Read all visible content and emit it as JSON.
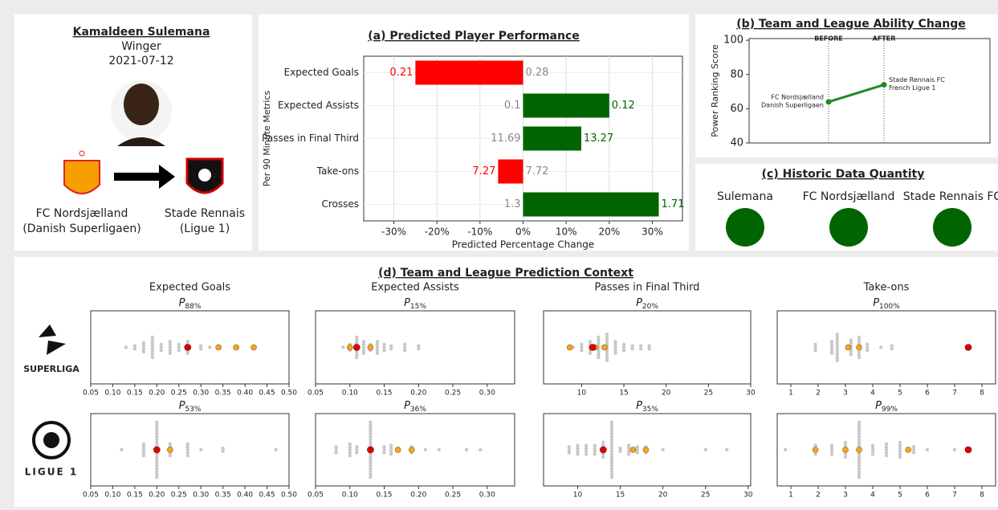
{
  "player": {
    "name": "Kamaldeen Sulemana",
    "position": "Winger",
    "date": "2021-07-12",
    "from_club": [
      "FC Nordsjælland",
      "(Danish Superligaen)"
    ],
    "to_club": [
      "Stade Rennais",
      "(Ligue 1)"
    ]
  },
  "chart_data": [
    {
      "type": "hbar",
      "title": "(a) Predicted Player Performance",
      "xlabel": "Predicted Percentage Change",
      "ylabel": "Per 90 Minute Metrics",
      "categories": [
        "Expected Goals",
        "Expected Assists",
        "Passes in Final Third",
        "Take-ons",
        "Crosses"
      ],
      "values": [
        -25,
        20,
        13.5,
        -5.8,
        31.5
      ],
      "baseline": [
        0.28,
        0.1,
        11.69,
        7.72,
        1.3
      ],
      "predicted": [
        0.21,
        0.12,
        13.27,
        7.27,
        1.71
      ],
      "color_increase": "#006400",
      "color_decrease": "#ff0000",
      "baseline_color": "#888888",
      "xlim": [
        -37,
        37
      ],
      "xticks": [
        {
          "value": -30,
          "label": "-30%"
        },
        {
          "value": -20,
          "label": "-20%"
        },
        {
          "value": -10,
          "label": "-10%"
        },
        {
          "value": 0,
          "label": "0%"
        },
        {
          "value": 10,
          "label": "10%"
        },
        {
          "value": 20,
          "label": "20%"
        },
        {
          "value": 30,
          "label": "30%"
        }
      ],
      "grid": true
    },
    {
      "type": "line",
      "title": "(b) Team and League Ability Change",
      "ylabel": "Power Ranking Score",
      "categories": [
        "BEFORE",
        "AFTER"
      ],
      "values": [
        64,
        74
      ],
      "color": "#228b22",
      "annotations": [
        [
          "FC Nordsjælland",
          "Danish Superligaen"
        ],
        [
          "Stade Rennais FC",
          "French Ligue 1"
        ]
      ],
      "ylim": [
        40,
        101
      ],
      "yticks": [
        40,
        60,
        80,
        100
      ]
    },
    {
      "type": "circles",
      "title": "(c) Historic Data Quantity",
      "categories": [
        "Sulemana",
        "FC Nordsjælland",
        "Stade Rennais FC"
      ],
      "color": "#006400"
    },
    {
      "type": "strip-grid",
      "title": "(d) Team and League Prediction Context",
      "row_labels": [
        "SUPERLIGA",
        "LIGUE 1"
      ],
      "point_color": "#c8c8c8",
      "highlight_color": "#f5a623",
      "player_color": "#e00000",
      "panels": [
        {
          "title": "Expected Goals",
          "subtitle": "P",
          "subtitle_sub": "88%",
          "xlim": [
            0.05,
            0.5
          ],
          "xticks": [
            0.05,
            {
              "value": 0.1,
              "label": "0.10"
            },
            0.15,
            {
              "value": 0.2,
              "label": "0.20"
            },
            0.25,
            {
              "value": 0.3,
              "label": "0.30"
            },
            0.35,
            {
              "value": 0.4,
              "label": "0.40"
            },
            0.45,
            {
              "value": 0.5,
              "label": "0.50"
            }
          ],
          "points": {
            "values": [
              0.13,
              0.15,
              0.17,
              0.19,
              0.21,
              0.23,
              0.25,
              0.27,
              0.3,
              0.32
            ],
            "counts": [
              1,
              2,
              4,
              8,
              3,
              5,
              3,
              5,
              2,
              1
            ]
          },
          "highlights": [
            0.34,
            0.38,
            0.42
          ],
          "player": 0.27
        },
        {
          "title": "Expected Assists",
          "subtitle": "P",
          "subtitle_sub": "15%",
          "xlim": [
            0.05,
            0.34
          ],
          "xticks": [
            0.05,
            {
              "value": 0.1,
              "label": "0.10"
            },
            0.15,
            {
              "value": 0.2,
              "label": "0.20"
            },
            0.25,
            {
              "value": 0.3,
              "label": "0.30"
            }
          ],
          "points": {
            "values": [
              0.09,
              0.1,
              0.11,
              0.12,
              0.13,
              0.14,
              0.15,
              0.16,
              0.18,
              0.2
            ],
            "counts": [
              1,
              3,
              8,
              5,
              3,
              5,
              3,
              2,
              3,
              2
            ]
          },
          "highlights": [
            0.1,
            0.11,
            0.13
          ],
          "player": 0.11
        },
        {
          "title": "Passes in Final Third",
          "subtitle": "P",
          "subtitle_sub": "20%",
          "xlim": [
            5.5,
            30
          ],
          "xticks": [
            10,
            15,
            20,
            25,
            30
          ],
          "points": {
            "values": [
              9,
              10,
              11,
              12,
              13,
              14,
              15,
              16,
              17,
              18
            ],
            "counts": [
              1,
              3,
              5,
              8,
              10,
              5,
              3,
              2,
              2,
              2
            ]
          },
          "highlights": [
            8.6,
            11.6,
            12.7
          ],
          "player": 11.3
        },
        {
          "title": "Take-ons",
          "subtitle": "P",
          "subtitle_sub": "100%",
          "xlim": [
            0.5,
            8.5
          ],
          "xticks": [
            1,
            2,
            3,
            4,
            5,
            6,
            7,
            8
          ],
          "points": {
            "values": [
              1.9,
              2.5,
              2.7,
              3.2,
              3.5,
              3.8,
              4.3,
              4.7
            ],
            "counts": [
              3,
              5,
              10,
              6,
              8,
              3,
              1,
              2
            ]
          },
          "highlights": [
            3.1,
            3.5
          ],
          "player": 7.5
        },
        {
          "subtitle": "P",
          "subtitle_sub": "53%",
          "xlim": [
            0.05,
            0.5
          ],
          "xticks": [
            0.05,
            {
              "value": 0.1,
              "label": "0.10"
            },
            0.15,
            {
              "value": 0.2,
              "label": "0.20"
            },
            0.25,
            {
              "value": 0.3,
              "label": "0.30"
            },
            0.35,
            {
              "value": 0.4,
              "label": "0.40"
            },
            0.45,
            {
              "value": 0.5,
              "label": "0.50"
            }
          ],
          "points": {
            "values": [
              0.12,
              0.17,
              0.2,
              0.23,
              0.27,
              0.3,
              0.35,
              0.47
            ],
            "counts": [
              1,
              5,
              20,
              5,
              5,
              1,
              2,
              1
            ]
          },
          "highlights": [
            0.2,
            0.23
          ],
          "player": 0.2
        },
        {
          "subtitle": "P",
          "subtitle_sub": "36%",
          "xlim": [
            0.05,
            0.34
          ],
          "xticks": [
            0.05,
            {
              "value": 0.1,
              "label": "0.10"
            },
            0.15,
            {
              "value": 0.2,
              "label": "0.20"
            },
            0.25,
            {
              "value": 0.3,
              "label": "0.30"
            }
          ],
          "points": {
            "values": [
              0.08,
              0.1,
              0.11,
              0.13,
              0.15,
              0.16,
              0.17,
              0.19,
              0.21,
              0.23,
              0.27,
              0.29
            ],
            "counts": [
              3,
              5,
              3,
              20,
              3,
              4,
              2,
              3,
              1,
              1,
              1,
              1
            ]
          },
          "highlights": [
            0.13,
            0.17,
            0.19
          ],
          "player": 0.13
        },
        {
          "subtitle": "P",
          "subtitle_sub": "35%",
          "xlim": [
            6,
            30.3
          ],
          "xticks": [
            10,
            15,
            20,
            25,
            30
          ],
          "points": {
            "values": [
              9,
              10,
              11,
              12,
              13,
              14,
              15,
              16,
              17,
              18,
              20,
              25,
              27.5
            ],
            "counts": [
              3,
              4,
              4,
              4,
              6,
              20,
              2,
              4,
              3,
              3,
              1,
              1,
              1
            ]
          },
          "highlights": [
            13,
            16.5,
            18
          ],
          "player": 13
        },
        {
          "subtitle": "P",
          "subtitle_sub": "99%",
          "xlim": [
            0.5,
            8.5
          ],
          "xticks": [
            1,
            2,
            3,
            4,
            5,
            6,
            7,
            8
          ],
          "points": {
            "values": [
              0.8,
              1.9,
              2.5,
              3,
              3.5,
              4,
              4.5,
              5,
              5.5,
              6,
              7
            ],
            "counts": [
              1,
              4,
              4,
              6,
              20,
              4,
              5,
              6,
              3,
              1,
              1
            ]
          },
          "highlights": [
            1.9,
            3,
            3.5,
            5.3
          ],
          "player": 7.5
        }
      ]
    }
  ]
}
